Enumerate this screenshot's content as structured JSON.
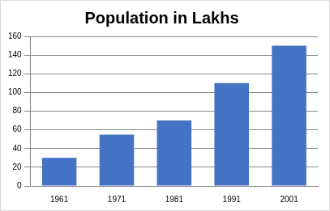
{
  "chart_data": {
    "type": "bar",
    "title": "Population in Lakhs",
    "categories": [
      "1961",
      "1971",
      "1981",
      "1991",
      "2001"
    ],
    "values": [
      30,
      55,
      70,
      110,
      150
    ],
    "color": "#4472c4",
    "ylim": [
      0,
      160
    ],
    "yticks": [
      0,
      20,
      40,
      60,
      80,
      100,
      120,
      140,
      160
    ],
    "grid": true
  }
}
